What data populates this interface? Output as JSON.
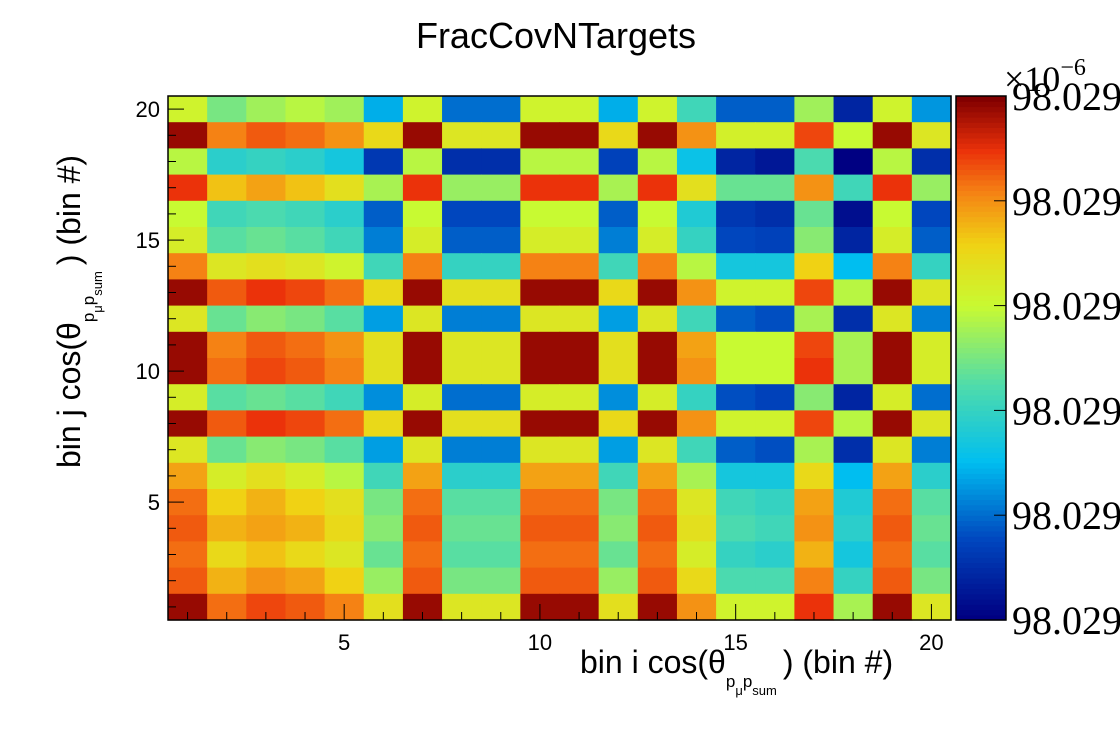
{
  "chart_data": {
    "type": "heatmap",
    "title": "FracCovNTargets",
    "xlabel": {
      "prefix": "bin i cos(",
      "theta": "θ",
      "sub1": "p",
      "sub1_sub": "μ",
      "sub2": "p",
      "sub2_sub": "sum",
      "suffix": ") (bin #)"
    },
    "ylabel": {
      "prefix": "bin j cos(",
      "theta": "θ",
      "sub1": "p",
      "sub1_sub": "μ",
      "sub2": "p",
      "sub2_sub": "sum",
      "suffix": ") (bin #)"
    },
    "xlim": [
      0.5,
      20.5
    ],
    "ylim": [
      0.5,
      20.5
    ],
    "xticks": [
      5,
      10,
      15,
      20
    ],
    "yticks": [
      5,
      10,
      15,
      20
    ],
    "colorbar": {
      "exponent_label": "×10",
      "exponent_power": "−6",
      "tick_labels": [
        "98.029",
        "98.029",
        "98.029",
        "98.029",
        "98.029",
        "98.029"
      ],
      "tick_levels": [
        0,
        0.2,
        0.4,
        0.6,
        0.8,
        1.0
      ],
      "palette": "rainbow (dark blue → cyan → yellow → red → dark red)"
    },
    "value_note": "z values shown as normalized levels 0–1 relative to colorbar range",
    "rows_top_to_bottom": [
      [
        0.62,
        0.5,
        0.55,
        0.58,
        0.55,
        0.28,
        0.62,
        0.2,
        0.2,
        0.62,
        0.62,
        0.28,
        0.62,
        0.42,
        0.18,
        0.18,
        0.55,
        0.08,
        0.62,
        0.25
      ],
      [
        0.98,
        0.82,
        0.86,
        0.84,
        0.8,
        0.7,
        0.98,
        0.66,
        0.66,
        0.98,
        0.98,
        0.7,
        0.98,
        0.8,
        0.63,
        0.63,
        0.88,
        0.6,
        0.98,
        0.66
      ],
      [
        0.58,
        0.38,
        0.4,
        0.38,
        0.34,
        0.12,
        0.58,
        0.1,
        0.1,
        0.58,
        0.58,
        0.14,
        0.58,
        0.32,
        0.08,
        0.05,
        0.44,
        0.0,
        0.58,
        0.1
      ],
      [
        0.9,
        0.74,
        0.78,
        0.74,
        0.68,
        0.56,
        0.9,
        0.54,
        0.54,
        0.9,
        0.9,
        0.56,
        0.9,
        0.68,
        0.48,
        0.48,
        0.8,
        0.42,
        0.9,
        0.54
      ],
      [
        0.6,
        0.42,
        0.44,
        0.42,
        0.38,
        0.18,
        0.6,
        0.15,
        0.15,
        0.6,
        0.6,
        0.18,
        0.6,
        0.36,
        0.12,
        0.1,
        0.48,
        0.03,
        0.6,
        0.15
      ],
      [
        0.64,
        0.46,
        0.48,
        0.46,
        0.42,
        0.22,
        0.64,
        0.18,
        0.18,
        0.64,
        0.64,
        0.22,
        0.64,
        0.4,
        0.15,
        0.14,
        0.52,
        0.08,
        0.64,
        0.18
      ],
      [
        0.82,
        0.66,
        0.68,
        0.66,
        0.62,
        0.42,
        0.82,
        0.4,
        0.4,
        0.82,
        0.82,
        0.42,
        0.82,
        0.58,
        0.34,
        0.34,
        0.72,
        0.3,
        0.82,
        0.4
      ],
      [
        0.98,
        0.86,
        0.9,
        0.88,
        0.84,
        0.7,
        0.98,
        0.68,
        0.68,
        0.98,
        0.98,
        0.7,
        0.98,
        0.8,
        0.62,
        0.62,
        0.88,
        0.58,
        0.98,
        0.66
      ],
      [
        0.66,
        0.48,
        0.52,
        0.5,
        0.46,
        0.26,
        0.66,
        0.22,
        0.22,
        0.66,
        0.66,
        0.26,
        0.66,
        0.42,
        0.18,
        0.16,
        0.56,
        0.1,
        0.66,
        0.22
      ],
      [
        0.98,
        0.82,
        0.86,
        0.84,
        0.8,
        0.68,
        0.98,
        0.66,
        0.66,
        0.98,
        0.98,
        0.68,
        0.98,
        0.78,
        0.6,
        0.6,
        0.88,
        0.56,
        0.98,
        0.64
      ],
      [
        0.98,
        0.84,
        0.88,
        0.86,
        0.82,
        0.68,
        0.98,
        0.66,
        0.66,
        0.98,
        0.98,
        0.68,
        0.98,
        0.8,
        0.6,
        0.6,
        0.9,
        0.56,
        0.98,
        0.64
      ],
      [
        0.64,
        0.46,
        0.48,
        0.46,
        0.42,
        0.24,
        0.64,
        0.2,
        0.2,
        0.64,
        0.64,
        0.24,
        0.64,
        0.4,
        0.16,
        0.14,
        0.52,
        0.08,
        0.64,
        0.2
      ],
      [
        0.98,
        0.86,
        0.9,
        0.88,
        0.84,
        0.7,
        0.98,
        0.68,
        0.68,
        0.98,
        0.98,
        0.7,
        0.98,
        0.8,
        0.62,
        0.62,
        0.88,
        0.58,
        0.98,
        0.66
      ],
      [
        0.66,
        0.48,
        0.52,
        0.5,
        0.46,
        0.26,
        0.66,
        0.22,
        0.22,
        0.66,
        0.66,
        0.26,
        0.66,
        0.42,
        0.18,
        0.16,
        0.56,
        0.1,
        0.66,
        0.22
      ],
      [
        0.78,
        0.64,
        0.68,
        0.64,
        0.58,
        0.42,
        0.78,
        0.38,
        0.38,
        0.78,
        0.78,
        0.42,
        0.78,
        0.56,
        0.34,
        0.34,
        0.7,
        0.3,
        0.78,
        0.38
      ],
      [
        0.84,
        0.72,
        0.76,
        0.72,
        0.68,
        0.5,
        0.84,
        0.46,
        0.46,
        0.84,
        0.84,
        0.5,
        0.84,
        0.66,
        0.42,
        0.4,
        0.78,
        0.36,
        0.84,
        0.46
      ],
      [
        0.86,
        0.76,
        0.78,
        0.76,
        0.7,
        0.52,
        0.86,
        0.48,
        0.48,
        0.86,
        0.86,
        0.52,
        0.86,
        0.68,
        0.44,
        0.42,
        0.8,
        0.38,
        0.86,
        0.48
      ],
      [
        0.84,
        0.7,
        0.74,
        0.7,
        0.66,
        0.48,
        0.84,
        0.46,
        0.46,
        0.84,
        0.84,
        0.48,
        0.84,
        0.64,
        0.4,
        0.38,
        0.76,
        0.34,
        0.84,
        0.46
      ],
      [
        0.86,
        0.76,
        0.8,
        0.78,
        0.72,
        0.54,
        0.86,
        0.5,
        0.5,
        0.86,
        0.86,
        0.54,
        0.86,
        0.7,
        0.44,
        0.44,
        0.82,
        0.4,
        0.86,
        0.5
      ],
      [
        0.98,
        0.84,
        0.88,
        0.86,
        0.82,
        0.68,
        0.98,
        0.66,
        0.66,
        0.98,
        0.98,
        0.68,
        0.98,
        0.8,
        0.62,
        0.62,
        0.9,
        0.56,
        0.98,
        0.66
      ]
    ]
  }
}
